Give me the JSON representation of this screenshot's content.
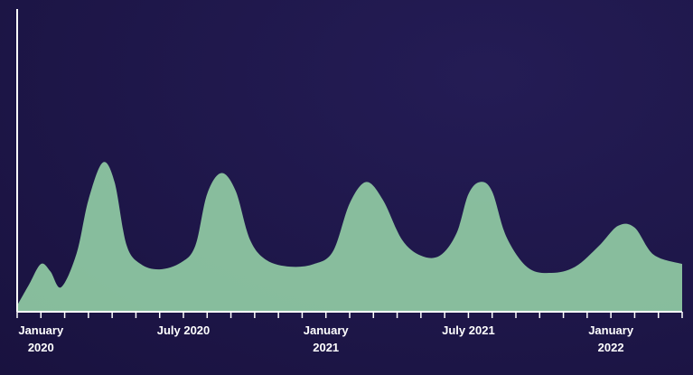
{
  "chart_data": {
    "type": "area",
    "color": "#93cfa6",
    "x": [
      -1,
      -0.5,
      0,
      0.4,
      0.85,
      1.5,
      2,
      2.6,
      3.1,
      3.6,
      4.2,
      5,
      5.9,
      6.5,
      7,
      7.6,
      8.2,
      8.8,
      9.5,
      10.5,
      11.5,
      12.3,
      13,
      13.7,
      14.4,
      15.2,
      16,
      16.8,
      17.5,
      18,
      18.5,
      19,
      19.6,
      20.5,
      21.5,
      22.5,
      23.5,
      24.3,
      25,
      25.8,
      27
    ],
    "values": [
      0.6,
      7.6,
      14.5,
      12,
      6.7,
      18,
      36,
      48.5,
      42,
      21,
      14.5,
      12.7,
      15,
      20.6,
      38,
      45,
      39,
      22.7,
      15.8,
      13.6,
      14.5,
      18.8,
      34.8,
      42,
      36,
      22.7,
      17.3,
      17.3,
      24.8,
      37.9,
      42,
      38.8,
      23.6,
      13.3,
      11.5,
      13.6,
      20.6,
      27.3,
      26.7,
      17.6,
      14.5
    ],
    "xlim": [
      -1,
      27
    ],
    "ylim": [
      0,
      100
    ],
    "xticks": [
      -1,
      {
        "value": 0,
        "label": "January 2020"
      },
      1,
      2,
      3,
      4,
      5,
      {
        "value": 6,
        "label": "July 2020"
      },
      7,
      8,
      9,
      10,
      11,
      {
        "value": 12,
        "label": "January 2021"
      },
      13,
      14,
      15,
      16,
      17,
      {
        "value": 18,
        "label": "July 2021"
      },
      19,
      20,
      21,
      22,
      23,
      {
        "value": 24,
        "label": "January 2022"
      },
      25,
      26,
      27
    ]
  }
}
